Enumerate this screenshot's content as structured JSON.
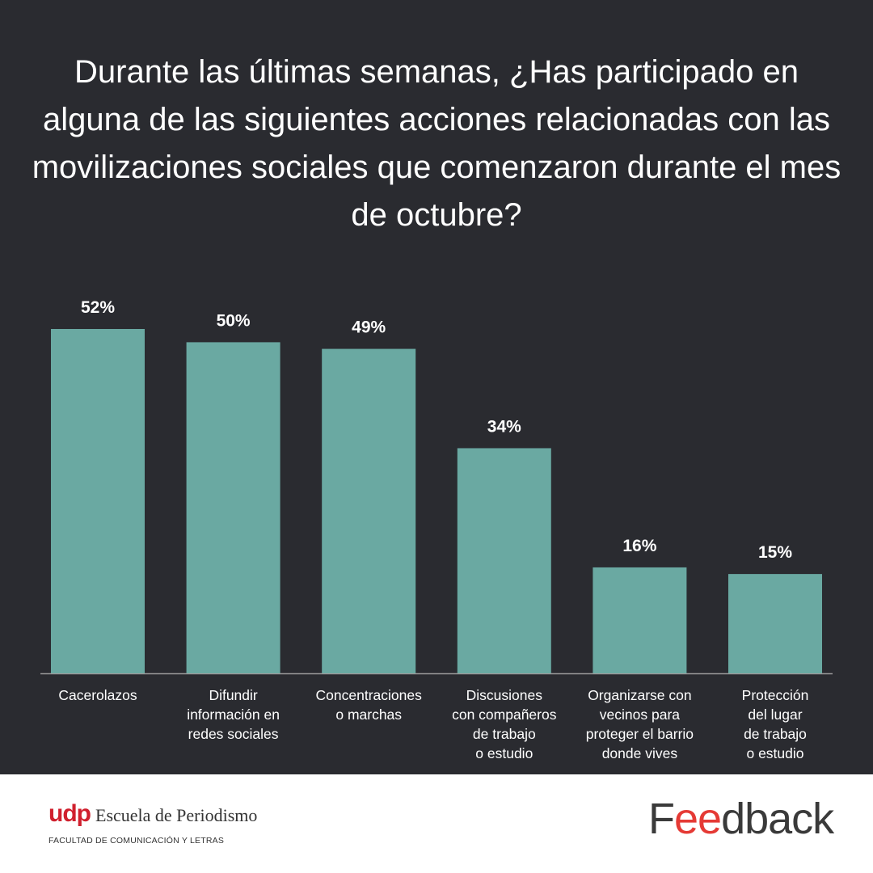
{
  "title": "Durante las últimas semanas, ¿Has participado en alguna de las siguientes acciones relacionadas con las movilizaciones sociales que comenzaron durante el mes de octubre?",
  "colors": {
    "background": "#2a2b30",
    "bar": "#6aa9a2",
    "text": "#ffffff",
    "axis": "#9a9a9a",
    "udp_red": "#d0202e",
    "feedback_red": "#e53a35",
    "feedback_gray": "#3a3a3a"
  },
  "chart_data": {
    "type": "bar",
    "title": "Durante las últimas semanas, ¿Has participado en alguna de las siguientes acciones relacionadas con las movilizaciones sociales que comenzaron durante el mes de octubre?",
    "categories": [
      "Cacerolazos",
      "Difundir información en redes sociales",
      "Concentraciones o marchas",
      "Discusiones con compañeros de trabajo o estudio",
      "Organizarse con vecinos para proteger el barrio donde vives",
      "Protección del lugar de trabajo o estudio"
    ],
    "category_lines": [
      [
        "Cacerolazos"
      ],
      [
        "Difundir",
        "información en",
        "redes sociales"
      ],
      [
        "Concentraciones",
        "o marchas"
      ],
      [
        "Discusiones",
        "con compañeros",
        "de trabajo",
        "o estudio"
      ],
      [
        "Organizarse con",
        "vecinos para",
        "proteger el barrio",
        "donde vives"
      ],
      [
        "Protección",
        "del lugar",
        "de trabajo",
        "o estudio"
      ]
    ],
    "values": [
      52,
      50,
      49,
      34,
      16,
      15
    ],
    "value_labels": [
      "52%",
      "50%",
      "49%",
      "34%",
      "16%",
      "15%"
    ],
    "unit": "%",
    "ylim": [
      0,
      52
    ],
    "xlabel": "",
    "ylabel": "",
    "grid": false,
    "legend": "none"
  },
  "footer": {
    "udp_mark": "udp",
    "school": "Escuela de Periodismo",
    "faculty": "FACULTAD DE COMUNICACIÓN Y LETRAS",
    "feedback_logo": {
      "before": "F",
      "highlight": "ee",
      "after": "dback"
    }
  }
}
